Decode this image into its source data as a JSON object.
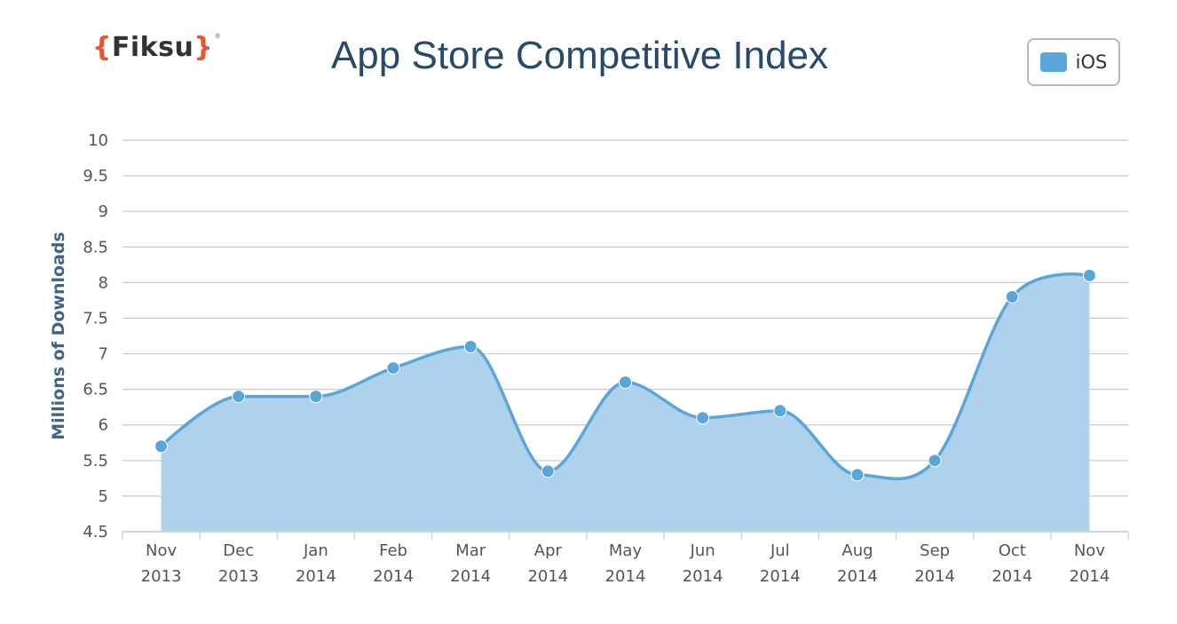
{
  "logo": {
    "open": "{",
    "text": "Fiksu",
    "close": "}",
    "tm": "®"
  },
  "chart_data": {
    "type": "area",
    "title": "App Store Competitive Index",
    "xlabel": "",
    "ylabel": "Millions of Downloads",
    "categories": [
      [
        "Nov",
        "2013"
      ],
      [
        "Dec",
        "2013"
      ],
      [
        "Jan",
        "2014"
      ],
      [
        "Feb",
        "2014"
      ],
      [
        "Mar",
        "2014"
      ],
      [
        "Apr",
        "2014"
      ],
      [
        "May",
        "2014"
      ],
      [
        "Jun",
        "2014"
      ],
      [
        "Jul",
        "2014"
      ],
      [
        "Aug",
        "2014"
      ],
      [
        "Sep",
        "2014"
      ],
      [
        "Oct",
        "2014"
      ],
      [
        "Nov",
        "2014"
      ]
    ],
    "series": [
      {
        "name": "iOS",
        "color": "#5aa5d9",
        "fill": "#aed1ec",
        "values": [
          5.7,
          6.4,
          6.4,
          6.8,
          7.1,
          5.35,
          6.6,
          6.1,
          6.2,
          5.3,
          5.5,
          7.8,
          8.1
        ]
      }
    ],
    "ylim": [
      4.5,
      10
    ],
    "yticks": [
      "4.5",
      "5",
      "5.5",
      "6",
      "6.5",
      "7",
      "7.5",
      "8",
      "8.5",
      "9",
      "9.5",
      "10"
    ],
    "grid": true,
    "legend": "top-right",
    "colors": {
      "grid": "#c8c8c8",
      "axis": "#c6d7e8",
      "title": "#264a6b"
    }
  }
}
